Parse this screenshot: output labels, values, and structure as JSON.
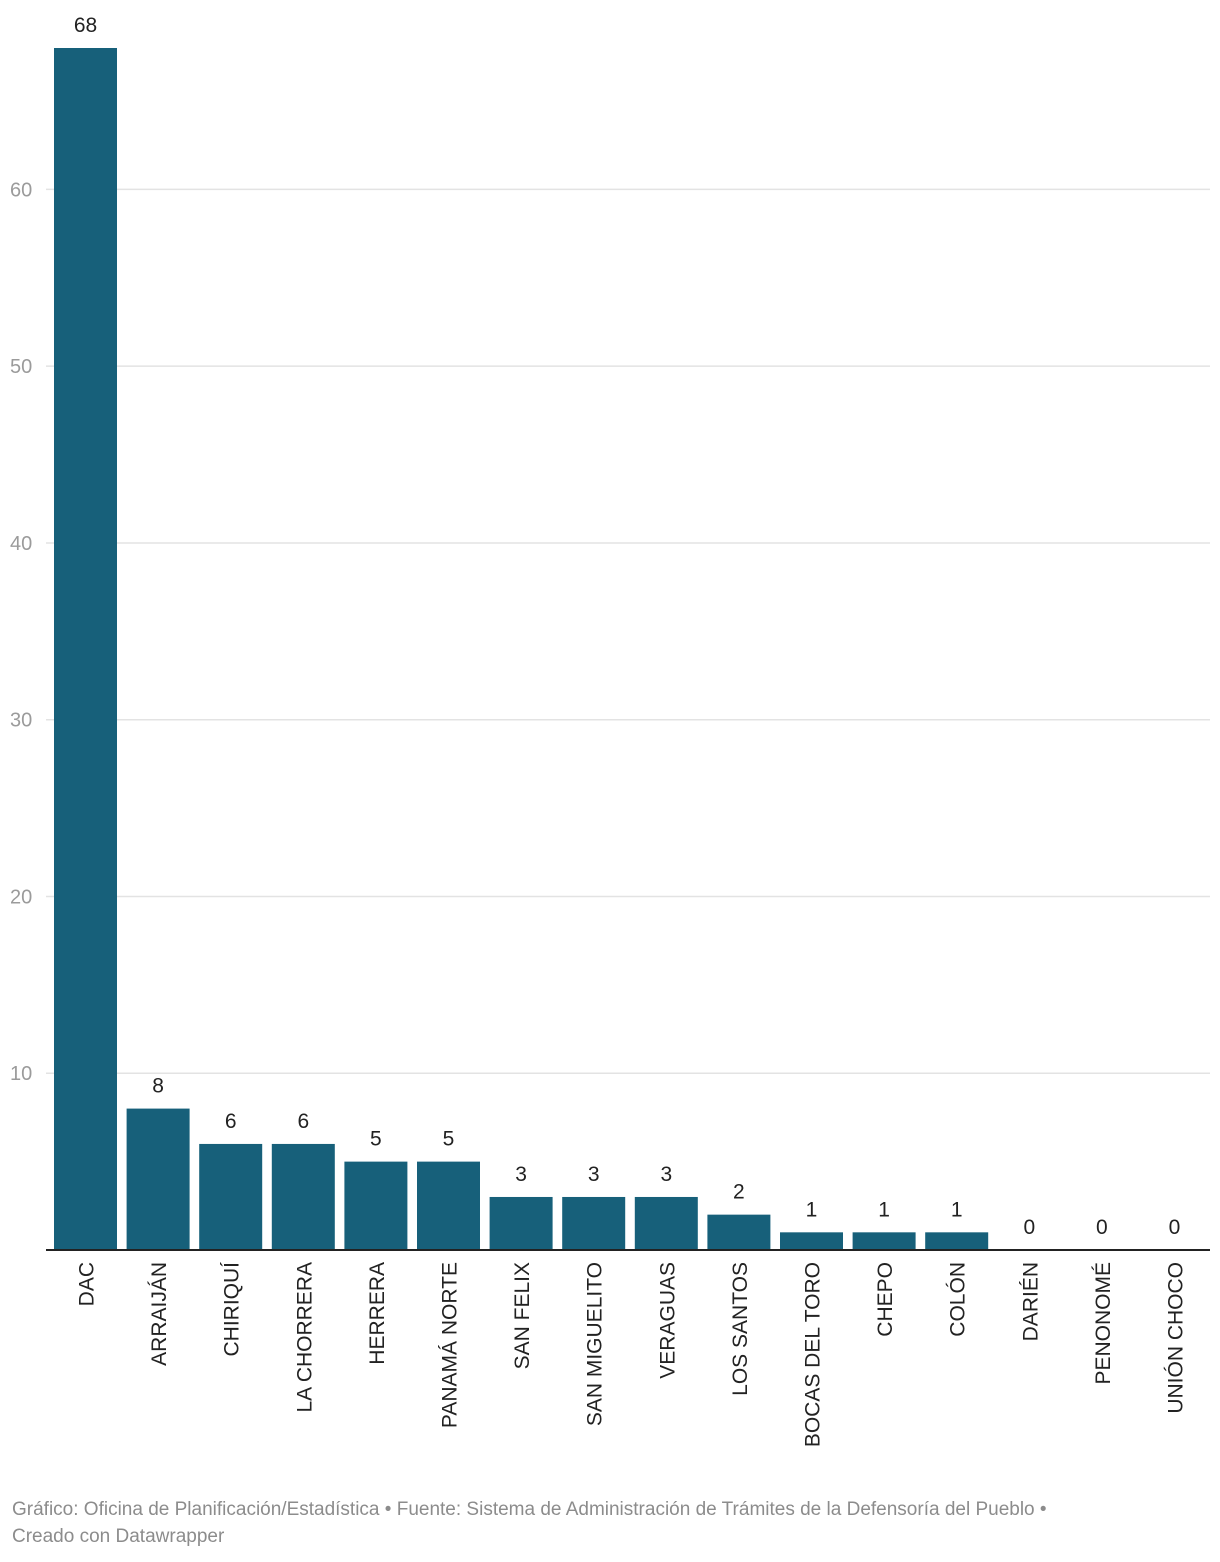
{
  "chart_data": {
    "type": "bar",
    "categories": [
      "DAC",
      "ARRAIJÁN",
      "CHIRIQUÍ",
      "LA CHORRERA",
      "HERRERA",
      "PANAMÁ NORTE",
      "SAN FELIX",
      "SAN MIGUELITO",
      "VERAGUAS",
      "LOS SANTOS",
      "BOCAS DEL TORO",
      "CHEPO",
      "COLÓN",
      "DARIÉN",
      "PENONOMÉ",
      "UNIÓN CHOCO"
    ],
    "values": [
      68,
      8,
      6,
      6,
      5,
      5,
      3,
      3,
      3,
      2,
      1,
      1,
      1,
      0,
      0,
      0
    ],
    "yticks": [
      10,
      20,
      30,
      40,
      50,
      60
    ],
    "ylim": [
      0,
      68
    ],
    "grid": true,
    "bar_color": "#17607a",
    "title": "",
    "xlabel": "",
    "ylabel": ""
  },
  "footer": {
    "line1": "Gráfico: Oficina de Planificación/Estadística • Fuente: Sistema de Administración de Trámites de la Defensoría del Pueblo •",
    "line2": "Creado con Datawrapper"
  }
}
